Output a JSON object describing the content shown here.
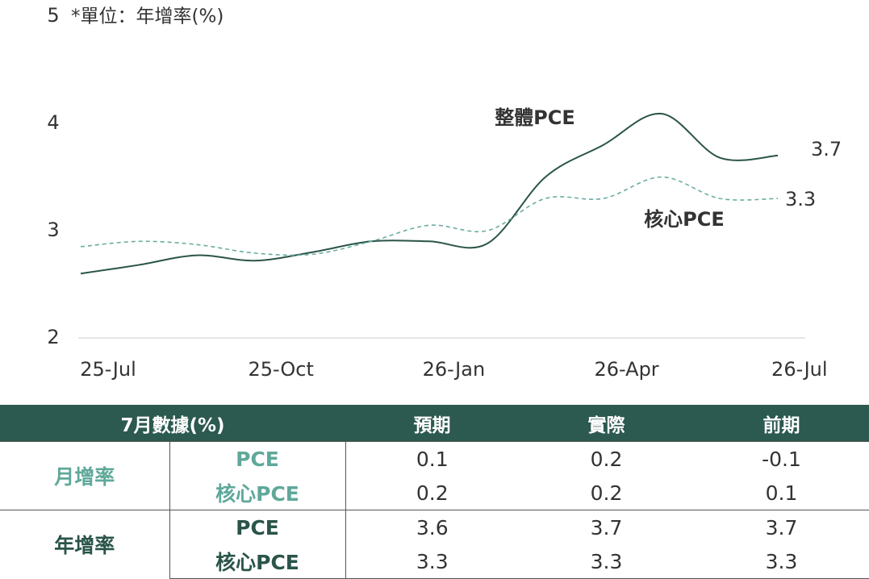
{
  "chart_data": {
    "type": "line",
    "y_unit_label": "*單位：年增率(%)",
    "categories": [
      "25-Jul",
      null,
      null,
      "25-Oct",
      null,
      null,
      "26-Jan",
      null,
      null,
      "26-Apr",
      null,
      null,
      "26-Jul"
    ],
    "series": [
      {
        "name": "整體PCE",
        "color": "#2a5449",
        "dash": false,
        "values": [
          2.6,
          2.68,
          2.77,
          2.72,
          2.8,
          2.9,
          2.9,
          2.88,
          3.5,
          3.8,
          4.09,
          3.68,
          3.7
        ]
      },
      {
        "name": "核心PCE",
        "color": "#6aada0",
        "dash": true,
        "values": [
          2.85,
          2.9,
          2.87,
          2.79,
          2.78,
          2.9,
          3.05,
          3.0,
          3.3,
          3.3,
          3.5,
          3.3,
          3.3
        ]
      }
    ],
    "ylim": [
      2,
      5
    ],
    "yticks": [
      2,
      3,
      4,
      5
    ],
    "grid": false
  },
  "table": {
    "header": [
      "7月數據(%)",
      "預期",
      "實際",
      "前期"
    ],
    "groups": [
      {
        "label": "月增率",
        "rows": [
          [
            "PCE",
            0.1,
            0.2,
            -0.1
          ],
          [
            "核心PCE",
            0.2,
            0.2,
            0.1
          ]
        ]
      },
      {
        "label": "年增率",
        "rows": [
          [
            "PCE",
            3.6,
            3.7,
            3.7
          ],
          [
            "核心PCE",
            3.3,
            3.3,
            3.3
          ]
        ]
      }
    ]
  }
}
